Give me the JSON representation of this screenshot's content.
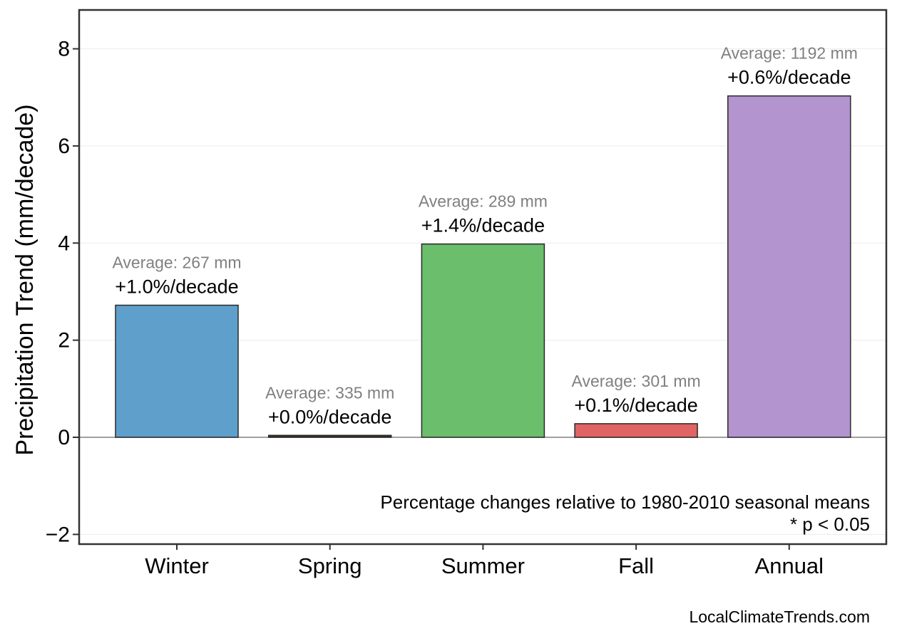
{
  "chart_data": {
    "type": "bar",
    "categories": [
      "Winter",
      "Spring",
      "Summer",
      "Fall",
      "Annual"
    ],
    "values": [
      2.72,
      0.04,
      3.98,
      0.28,
      7.03
    ],
    "colors": [
      "#5f9fcc",
      "#3a2f1f",
      "#6bbe6b",
      "#e06464",
      "#b394cf"
    ],
    "average_labels": [
      "Average: 267 mm",
      "Average: 335 mm",
      "Average: 289 mm",
      "Average: 301 mm",
      "Average: 1192 mm"
    ],
    "percent_labels": [
      "+1.0%/decade",
      "+0.0%/decade",
      "+1.4%/decade",
      "+0.1%/decade",
      "+0.6%/decade"
    ],
    "ylabel": "Precipitation Trend (mm/decade)",
    "xlabel": "",
    "title": "",
    "ylim": [
      -2.2,
      8.8
    ],
    "yticks": [
      -2,
      0,
      2,
      4,
      6,
      8
    ],
    "ytick_labels": [
      "−2",
      "0",
      "2",
      "4",
      "6",
      "8"
    ],
    "grid": true,
    "notes": [
      "Percentage changes relative to 1980-2010 seasonal means",
      "* p < 0.05"
    ],
    "credit": "LocalClimateTrends.com"
  }
}
